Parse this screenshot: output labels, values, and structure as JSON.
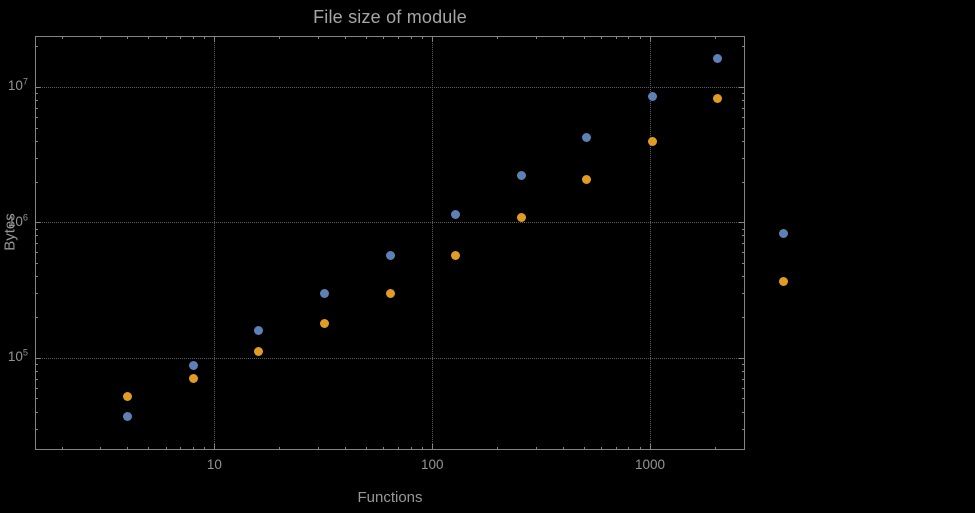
{
  "chart_data": {
    "type": "scatter",
    "title": "File size of module",
    "xlabel": "Functions",
    "ylabel": "Bytes",
    "x_scale": "log",
    "y_scale": "log",
    "grid": "dotted-major",
    "legend": "none",
    "xlim": [
      1.5,
      2730
    ],
    "ylim": [
      21000,
      24000000
    ],
    "x_ticks": [
      10,
      100,
      1000
    ],
    "x_tick_labels": [
      "10",
      "100",
      "1000"
    ],
    "y_ticks": [
      100000,
      1000000,
      10000000
    ],
    "y_tick_labels": [
      {
        "mantissa": "10",
        "exponent": "5"
      },
      {
        "mantissa": "10",
        "exponent": "6"
      },
      {
        "mantissa": "10",
        "exponent": "7"
      }
    ],
    "x": [
      4,
      8,
      16,
      32,
      64,
      128,
      256,
      512,
      1024,
      2048,
      4096
    ],
    "series": [
      {
        "name": "blue-series",
        "color": "#5e81b5",
        "values": [
          37000,
          89000,
          160000,
          300000,
          570000,
          1150000,
          2250000,
          4300000,
          8600000,
          16500000,
          840000
        ]
      },
      {
        "name": "orange-series",
        "color": "#e19c24",
        "values": [
          52000,
          71000,
          112000,
          180000,
          300000,
          570000,
          1100000,
          2100000,
          4000000,
          8300000,
          370000
        ]
      }
    ],
    "colors": {
      "background": "#000000",
      "frame": "#848484",
      "grid": "#5c5c5c",
      "text": "#969696"
    }
  }
}
